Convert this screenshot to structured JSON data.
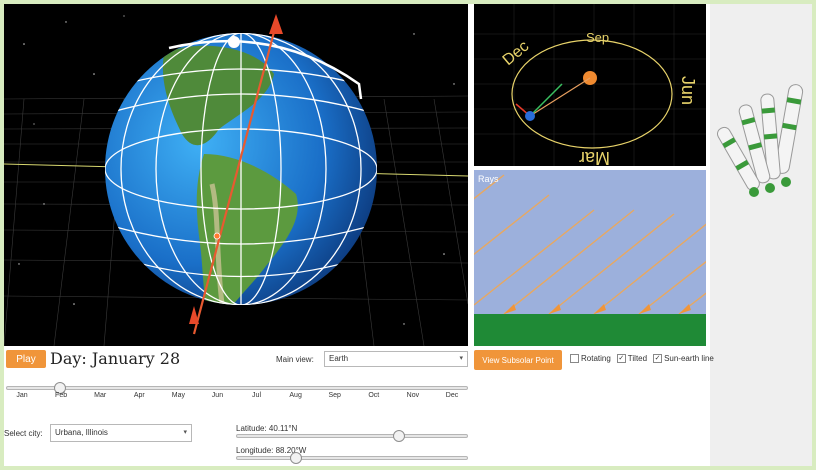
{
  "earth_view": {
    "name": "Earth 3D view"
  },
  "orbit_view": {
    "labels": {
      "sep": "Sep",
      "dec": "Dec",
      "jun": "Jun",
      "mar": "Mar"
    }
  },
  "rays_view": {
    "label": "Rays"
  },
  "controls": {
    "play_label": "Play",
    "day_title": "Day: January 28",
    "main_view_label": "Main view:",
    "main_view_value": "Earth",
    "subsolar_label": "View Subsolar Point",
    "options": [
      {
        "label": "Rotating",
        "checked": false
      },
      {
        "label": "Tilted",
        "checked": true
      },
      {
        "label": "Sun-earth line",
        "checked": true
      }
    ],
    "day_of_year": 28,
    "months": [
      "Jan",
      "Feb",
      "Mar",
      "Apr",
      "May",
      "Jun",
      "Jul",
      "Aug",
      "Sep",
      "Oct",
      "Nov",
      "Dec"
    ],
    "city_label": "Select city:",
    "city_value": "Urbana, Illinois",
    "latitude_label": "Latitude: 40.11°N",
    "latitude_value": 40.11,
    "longitude_label": "Longitude: 88.20°W",
    "longitude_value": -88.2
  },
  "colors": {
    "accent": "#f0953a",
    "ground": "#1f8a36",
    "sky": "#9cb0dc",
    "ray": "#f0953a"
  }
}
